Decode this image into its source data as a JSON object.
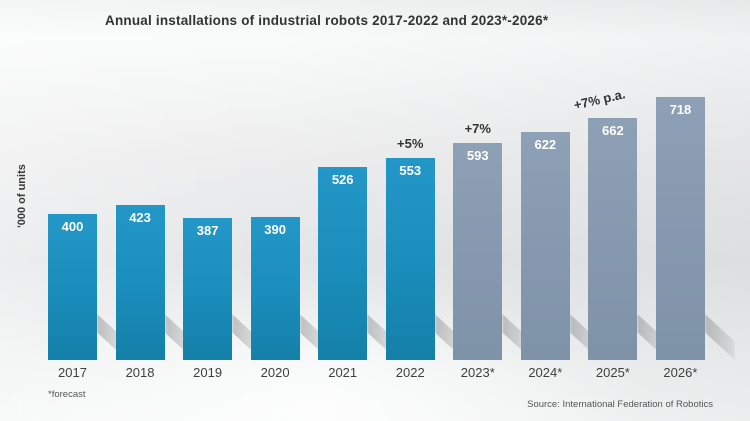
{
  "title": "Annual installations of industrial robots 2017-2022 and 2023*-2026*",
  "y_axis": {
    "label": "'000 of units"
  },
  "footnote": "*forecast",
  "source": "Source: International Federation of Robotics",
  "colors": {
    "actual_bar": "#1b8ebd",
    "forecast_bar": "#8598af",
    "bar_value_text": "#ffffff",
    "annotation_text": "#333333",
    "axis_text": "#3f3f3f"
  },
  "chart_data": {
    "type": "bar",
    "title": "Annual installations of industrial robots 2017-2022 and 2023*-2026*",
    "xlabel": "",
    "ylabel": "'000 of units",
    "categories": [
      "2017",
      "2018",
      "2019",
      "2020",
      "2021",
      "2022",
      "2023*",
      "2024*",
      "2025*",
      "2026*"
    ],
    "values": [
      400,
      423,
      387,
      390,
      526,
      553,
      593,
      622,
      662,
      718
    ],
    "bar_styles": [
      "actual",
      "actual",
      "actual",
      "actual",
      "actual",
      "actual",
      "forecast",
      "forecast",
      "forecast",
      "forecast"
    ],
    "annotations": [
      {
        "category": "2022",
        "text": "+5%",
        "rotated": false
      },
      {
        "category": "2023*",
        "text": "+7%",
        "rotated": false
      },
      {
        "category": "2025*",
        "text": "+7% p.a.",
        "rotated": true
      }
    ],
    "ylim": [
      0,
      740
    ],
    "grid": false,
    "legend": "none",
    "notes": "Bars 2017-2022 actual (teal), 2023*-2026* forecast (gray-blue); values labeled inside bar tops"
  }
}
